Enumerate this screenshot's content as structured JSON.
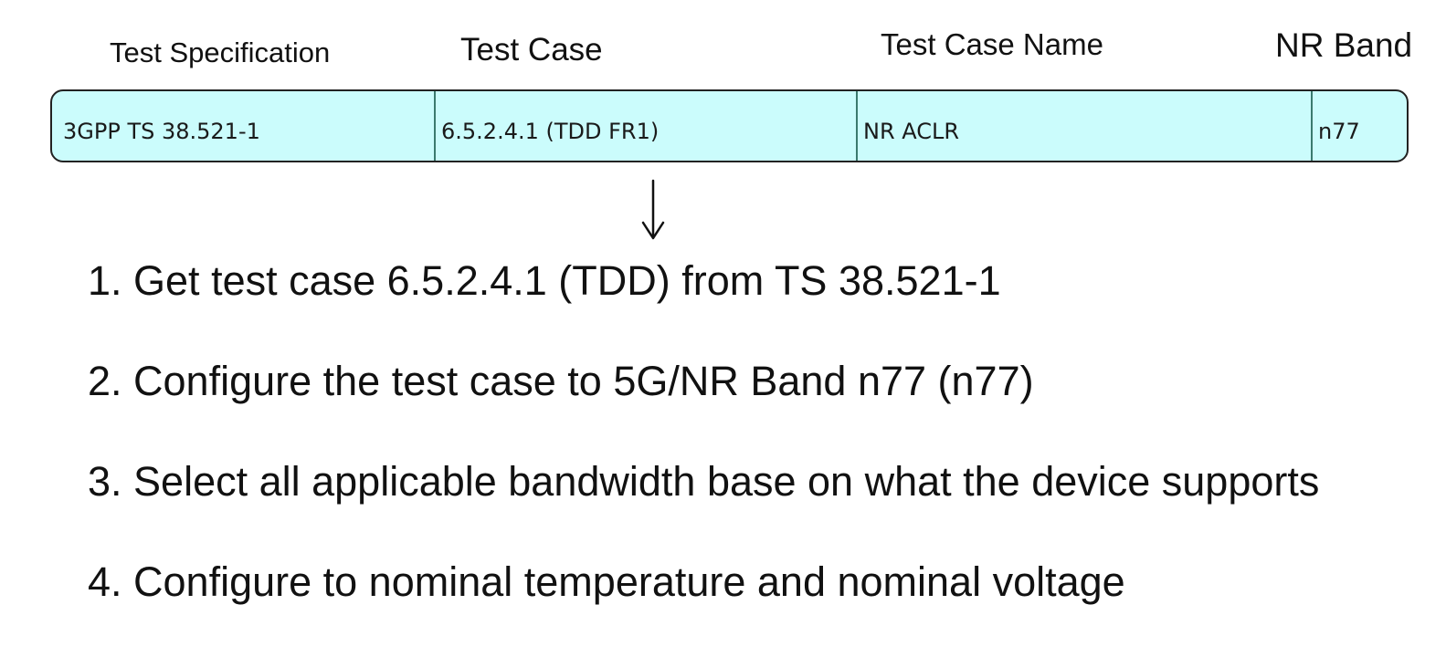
{
  "headers": {
    "test_specification": "Test Specification",
    "test_case": "Test Case",
    "test_case_name": "Test Case Name",
    "nr_band": "NR Band"
  },
  "row": {
    "test_specification": "3GPP TS 38.521-1",
    "test_case": "6.5.2.4.1 (TDD FR1)",
    "test_case_name": "NR ACLR",
    "nr_band": "n77"
  },
  "arrow_icon": "down-arrow-icon",
  "steps": [
    "1. Get test case 6.5.2.4.1 (TDD) from TS 38.521-1",
    "2. Configure the test case to 5G/NR Band n77 (n77)",
    "3. Select all applicable bandwidth base on what the device supports",
    "4. Configure to nominal temperature and nominal voltage"
  ],
  "colors": {
    "row_fill": "#cbfcfc",
    "cell_divider": "#3b7a6e",
    "text": "#111111"
  }
}
